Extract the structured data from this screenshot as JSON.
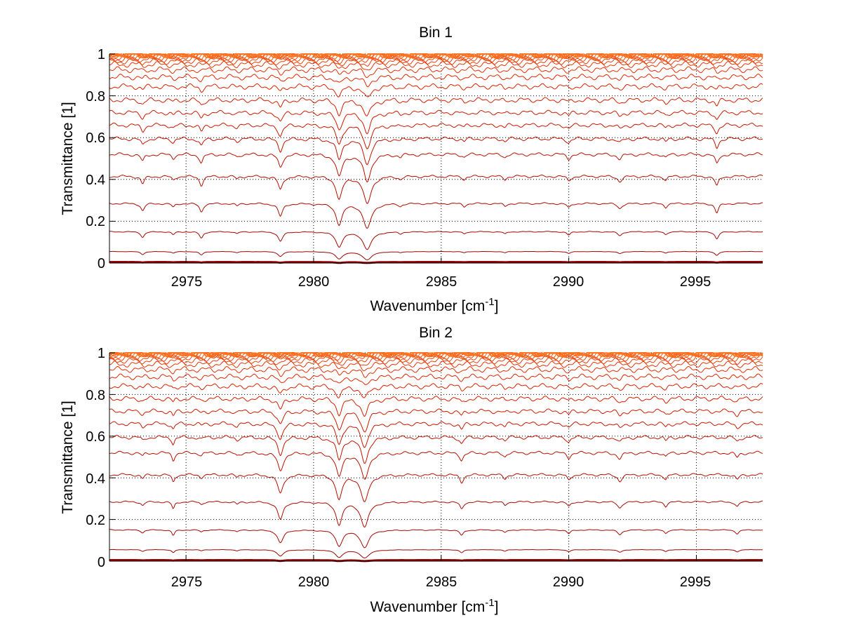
{
  "chart_data": [
    {
      "type": "line",
      "title": "Bin 1",
      "xlabel_main": "Wavenumber [cm",
      "xlabel_sup": "-1",
      "xlabel_close": "]",
      "ylabel": "Transmittance [1]",
      "xlim": [
        2972,
        2997.6
      ],
      "ylim": [
        0,
        1
      ],
      "xticks": [
        2975,
        2980,
        2985,
        2990,
        2995
      ],
      "yticks": [
        0,
        0.2,
        0.4,
        0.6,
        0.8,
        1
      ],
      "xtick_labels": [
        "2975",
        "2980",
        "2985",
        "2990",
        "2995"
      ],
      "ytick_labels": [
        "0",
        "0.2",
        "0.4",
        "0.6",
        "0.8",
        "1"
      ],
      "grid": true,
      "baselines": [
        0.005,
        0.055,
        0.15,
        0.285,
        0.415,
        0.52,
        0.595,
        0.66,
        0.72,
        0.78,
        0.845,
        0.89,
        0.925,
        0.95,
        0.965,
        0.975,
        0.982,
        0.988,
        0.992,
        0.995,
        0.997,
        0.999
      ],
      "absorption_lines": [
        {
          "x": 2973.3,
          "depth": 0.3,
          "width": 0.08
        },
        {
          "x": 2974.5,
          "depth": 0.15,
          "width": 0.07
        },
        {
          "x": 2975.6,
          "depth": 0.35,
          "width": 0.08
        },
        {
          "x": 2977.0,
          "depth": 0.1,
          "width": 0.07
        },
        {
          "x": 2978.7,
          "depth": 0.55,
          "width": 0.1
        },
        {
          "x": 2981.0,
          "depth": 1.0,
          "width": 0.13
        },
        {
          "x": 2982.1,
          "depth": 1.25,
          "width": 0.16
        },
        {
          "x": 2983.4,
          "depth": 0.1,
          "width": 0.07
        },
        {
          "x": 2985.9,
          "depth": 0.12,
          "width": 0.07
        },
        {
          "x": 2987.5,
          "depth": 0.12,
          "width": 0.07
        },
        {
          "x": 2990.0,
          "depth": 0.18,
          "width": 0.08
        },
        {
          "x": 2992.0,
          "depth": 0.2,
          "width": 0.1
        },
        {
          "x": 2993.8,
          "depth": 0.15,
          "width": 0.07
        },
        {
          "x": 2995.8,
          "depth": 0.4,
          "width": 0.08
        }
      ]
    },
    {
      "type": "line",
      "title": "Bin 2",
      "xlabel_main": "Wavenumber [cm",
      "xlabel_sup": "-1",
      "xlabel_close": "]",
      "ylabel": "Transmittance [1]",
      "xlim": [
        2972,
        2997.6
      ],
      "ylim": [
        0,
        1
      ],
      "xticks": [
        2975,
        2980,
        2985,
        2990,
        2995
      ],
      "yticks": [
        0,
        0.2,
        0.4,
        0.6,
        0.8,
        1
      ],
      "xtick_labels": [
        "2975",
        "2980",
        "2985",
        "2990",
        "2995"
      ],
      "ytick_labels": [
        "0",
        "0.2",
        "0.4",
        "0.6",
        "0.8",
        "1"
      ],
      "grid": true,
      "baselines": [
        0.005,
        0.055,
        0.15,
        0.285,
        0.415,
        0.52,
        0.595,
        0.66,
        0.72,
        0.78,
        0.84,
        0.885,
        0.92,
        0.945,
        0.962,
        0.974,
        0.982,
        0.988,
        0.992,
        0.995,
        0.997,
        0.999
      ],
      "absorption_lines": [
        {
          "x": 2973.3,
          "depth": 0.15,
          "width": 0.07
        },
        {
          "x": 2974.5,
          "depth": 0.3,
          "width": 0.06
        },
        {
          "x": 2975.6,
          "depth": 0.1,
          "width": 0.07
        },
        {
          "x": 2977.0,
          "depth": 0.1,
          "width": 0.07
        },
        {
          "x": 2978.7,
          "depth": 0.8,
          "width": 0.12
        },
        {
          "x": 2981.0,
          "depth": 1.1,
          "width": 0.13
        },
        {
          "x": 2982.0,
          "depth": 1.25,
          "width": 0.16
        },
        {
          "x": 2985.8,
          "depth": 0.3,
          "width": 0.08
        },
        {
          "x": 2987.5,
          "depth": 0.15,
          "width": 0.07
        },
        {
          "x": 2990.0,
          "depth": 0.2,
          "width": 0.08
        },
        {
          "x": 2992.0,
          "depth": 0.25,
          "width": 0.1
        },
        {
          "x": 2993.8,
          "depth": 0.18,
          "width": 0.07
        },
        {
          "x": 2996.6,
          "depth": 0.2,
          "width": 0.08
        }
      ]
    }
  ],
  "colors": {
    "line_dark": "#990000",
    "line_mid": "#dd2200",
    "line_light": "#ff7722",
    "axes": "#000000",
    "grid": "#000000",
    "background": "#ffffff"
  }
}
